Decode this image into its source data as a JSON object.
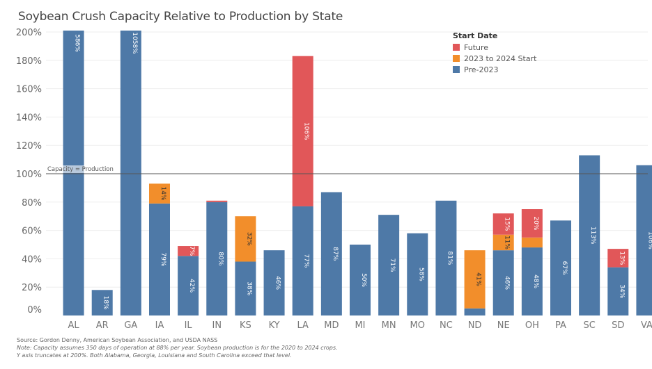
{
  "chart_data": {
    "type": "bar",
    "stacked": true,
    "title": "Soybean Crush Capacity Relative to Production by State",
    "xlabel": "",
    "ylabel": "",
    "ylim": [
      0,
      200
    ],
    "y_ticks": [
      "0%",
      "20%",
      "40%",
      "60%",
      "80%",
      "100%",
      "120%",
      "140%",
      "160%",
      "180%",
      "200%"
    ],
    "y_tick_values": [
      0,
      20,
      40,
      60,
      80,
      100,
      120,
      140,
      160,
      180,
      200
    ],
    "grid": true,
    "legend_position": "top-right",
    "legend_title": "Start Date",
    "categories": [
      "AL",
      "AR",
      "GA",
      "IA",
      "IL",
      "IN",
      "KS",
      "KY",
      "LA",
      "MD",
      "MI",
      "MN",
      "MO",
      "NC",
      "ND",
      "NE",
      "OH",
      "PA",
      "SC",
      "SD",
      "VA"
    ],
    "series": [
      {
        "name": "Pre-2023",
        "color": "#4e79a7",
        "values": [
          586,
          18,
          1058,
          79,
          42,
          80,
          38,
          46,
          77,
          87,
          50,
          71,
          58,
          81,
          5,
          46,
          48,
          67,
          113,
          34,
          106
        ],
        "labels": [
          "586%",
          "18%",
          "1058%",
          "79%",
          "42%",
          "80%",
          "38%",
          "46%",
          "77%",
          "87%",
          "50%",
          "71%",
          "58%",
          "81%",
          "",
          "46%",
          "48%",
          "67%",
          "113%",
          "34%",
          "106%"
        ]
      },
      {
        "name": "2023 to 2024 Start",
        "color": "#f28e2b",
        "values": [
          0,
          0,
          0,
          14,
          0,
          0,
          32,
          0,
          0,
          0,
          0,
          0,
          0,
          0,
          41,
          11,
          7,
          0,
          0,
          0,
          0
        ],
        "labels": [
          "",
          "",
          "",
          "14%",
          "",
          "",
          "32%",
          "",
          "",
          "",
          "",
          "",
          "",
          "",
          "41%",
          "11%",
          "",
          "",
          "",
          "",
          ""
        ]
      },
      {
        "name": "Future",
        "color": "#e15759",
        "values": [
          0,
          0,
          0,
          0,
          7,
          1,
          0,
          0,
          106,
          0,
          0,
          0,
          0,
          0,
          0,
          15,
          20,
          0,
          0,
          13,
          0
        ],
        "labels": [
          "",
          "",
          "",
          "",
          "7%",
          "",
          "",
          "",
          "106%",
          "",
          "",
          "",
          "",
          "",
          "",
          "15%",
          "20%",
          "",
          "",
          "13%",
          ""
        ]
      }
    ],
    "legend_order": [
      "Future",
      "2023 to 2024 Start",
      "Pre-2023"
    ],
    "reference_line": {
      "value": 100,
      "label": "Capacity = Production"
    }
  },
  "footer": {
    "source": "Source: Gordon Denny, American Soybean Association, and USDA NASS",
    "note1": "Note: Capacity assumes 350 days of operation at 88% per year. Soybean production is for the 2020 to 2024 crops.",
    "note2": "Y axis truncates at 200%. Both Alabama, Georgia, Louisiana and South Carolina exceed that level."
  }
}
